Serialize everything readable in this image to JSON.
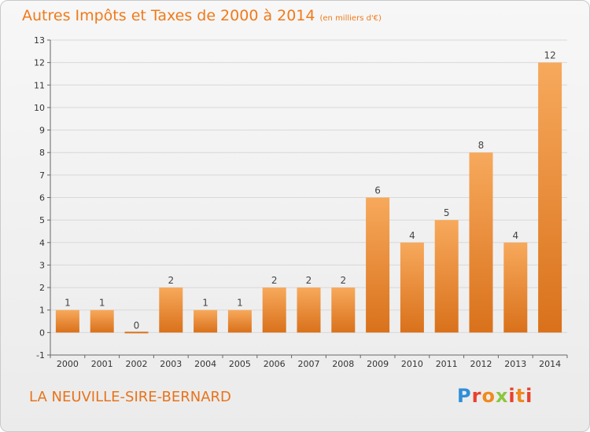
{
  "header": {
    "title": "Autres Impôts et Taxes de 2000 à 2014",
    "subtitle": "(en milliers d'€)"
  },
  "footer": {
    "commune": "LA NEUVILLE-SIRE-BERNARD",
    "logo_text": "Proxiti"
  },
  "colors": {
    "bar_top": "#f7a95c",
    "bar_bottom": "#d9711b",
    "title": "#f07a1a",
    "grid": "#d8d8d8"
  },
  "chart_data": {
    "type": "bar",
    "title": "Autres Impôts et Taxes de 2000 à 2014",
    "categories": [
      "2000",
      "2001",
      "2002",
      "2003",
      "2004",
      "2005",
      "2006",
      "2007",
      "2008",
      "2009",
      "2010",
      "2011",
      "2012",
      "2013",
      "2014"
    ],
    "values": [
      1,
      1,
      0,
      2,
      1,
      1,
      2,
      2,
      2,
      6,
      4,
      5,
      8,
      4,
      12
    ],
    "data_labels": [
      "1",
      "1",
      "0",
      "2",
      "1",
      "1",
      "2",
      "2",
      "2",
      "6",
      "4",
      "5",
      "8",
      "4",
      "12"
    ],
    "yticks": [
      "-1",
      "0",
      "1",
      "2",
      "3",
      "4",
      "5",
      "6",
      "7",
      "8",
      "9",
      "10",
      "11",
      "12",
      "13"
    ],
    "ylim": [
      -1,
      13
    ],
    "grid": true
  }
}
